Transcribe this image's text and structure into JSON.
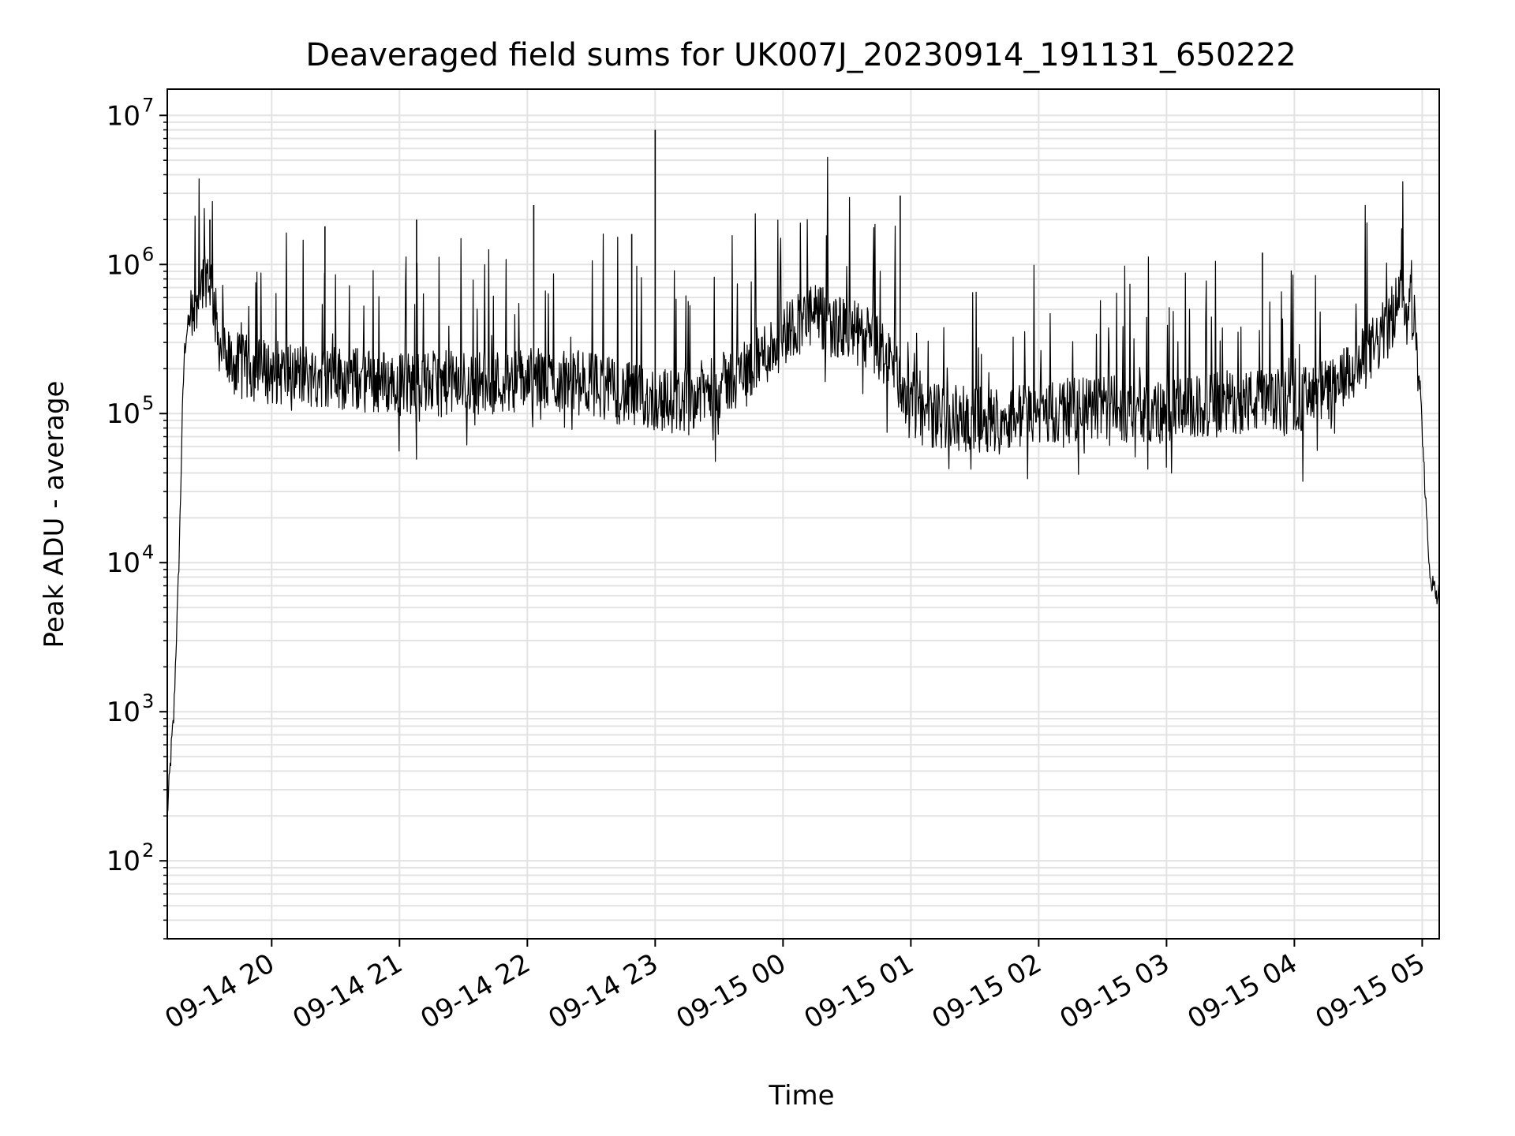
{
  "chart_data": {
    "type": "line",
    "title": "Deaveraged field sums for UK007J_20230914_191131_650222",
    "xlabel": "Time",
    "ylabel": "Peak ADU - average",
    "yscale": "log",
    "ylim": [
      30,
      15000000
    ],
    "xlim": [
      "2023-09-14 19:11",
      "2023-09-15 05:08"
    ],
    "grid": true,
    "x_ticks": [
      {
        "value": "2023-09-14 20:00",
        "label": "09-14 20"
      },
      {
        "value": "2023-09-14 21:00",
        "label": "09-14 21"
      },
      {
        "value": "2023-09-14 22:00",
        "label": "09-14 22"
      },
      {
        "value": "2023-09-14 23:00",
        "label": "09-14 23"
      },
      {
        "value": "2023-09-15 00:00",
        "label": "09-15 00"
      },
      {
        "value": "2023-09-15 01:00",
        "label": "09-15 01"
      },
      {
        "value": "2023-09-15 02:00",
        "label": "09-15 02"
      },
      {
        "value": "2023-09-15 03:00",
        "label": "09-15 03"
      },
      {
        "value": "2023-09-15 04:00",
        "label": "09-15 04"
      },
      {
        "value": "2023-09-15 05:00",
        "label": "09-15 05"
      }
    ],
    "y_ticks": [
      {
        "value": 100,
        "base": "10",
        "exp": "2"
      },
      {
        "value": 1000,
        "base": "10",
        "exp": "3"
      },
      {
        "value": 10000,
        "base": "10",
        "exp": "4"
      },
      {
        "value": 100000,
        "base": "10",
        "exp": "5"
      },
      {
        "value": 1000000,
        "base": "10",
        "exp": "6"
      },
      {
        "value": 10000000,
        "base": "10",
        "exp": "7"
      }
    ],
    "series": [
      {
        "color": "#000000",
        "points": [
          [
            "2023-09-14 19:11",
            200
          ],
          [
            "2023-09-14 19:12",
            350
          ],
          [
            "2023-09-14 19:13",
            600
          ],
          [
            "2023-09-14 19:14",
            900
          ],
          [
            "2023-09-14 19:15",
            2500
          ],
          [
            "2023-09-14 19:16",
            6000
          ],
          [
            "2023-09-14 19:17",
            20000
          ],
          [
            "2023-09-14 19:18",
            90000
          ],
          [
            "2023-09-14 19:19",
            250000
          ],
          [
            "2023-09-14 19:20",
            350000
          ],
          [
            "2023-09-14 19:22",
            450000
          ],
          [
            "2023-09-14 19:24",
            600000
          ],
          [
            "2023-09-14 19:26",
            700000
          ],
          [
            "2023-09-14 19:28",
            800000
          ],
          [
            "2023-09-14 19:30",
            900000
          ],
          [
            "2023-09-14 19:32",
            700000
          ],
          [
            "2023-09-14 19:34",
            400000
          ],
          [
            "2023-09-14 19:36",
            280000
          ],
          [
            "2023-09-14 19:40",
            220000
          ],
          [
            "2023-09-14 19:50",
            200000
          ],
          [
            "2023-09-14 20:00",
            190000
          ],
          [
            "2023-09-14 20:20",
            180000
          ],
          [
            "2023-09-14 20:40",
            170000
          ],
          [
            "2023-09-14 21:00",
            160000
          ],
          [
            "2023-09-14 21:30",
            160000
          ],
          [
            "2023-09-14 22:00",
            170000
          ],
          [
            "2023-09-14 22:30",
            160000
          ],
          [
            "2023-09-14 22:50",
            130000
          ],
          [
            "2023-09-14 23:10",
            120000
          ],
          [
            "2023-09-14 23:30",
            150000
          ],
          [
            "2023-09-14 23:45",
            210000
          ],
          [
            "2023-09-14 23:55",
            280000
          ],
          [
            "2023-09-15 00:05",
            400000
          ],
          [
            "2023-09-15 00:15",
            450000
          ],
          [
            "2023-09-15 00:25",
            380000
          ],
          [
            "2023-09-15 00:40",
            320000
          ],
          [
            "2023-09-15 00:50",
            230000
          ],
          [
            "2023-09-15 00:58",
            130000
          ],
          [
            "2023-09-15 01:05",
            100000
          ],
          [
            "2023-09-15 01:30",
            90000
          ],
          [
            "2023-09-15 02:00",
            100000
          ],
          [
            "2023-09-15 02:30",
            110000
          ],
          [
            "2023-09-15 03:00",
            100000
          ],
          [
            "2023-09-15 03:30",
            120000
          ],
          [
            "2023-09-15 04:00",
            120000
          ],
          [
            "2023-09-15 04:20",
            150000
          ],
          [
            "2023-09-15 04:35",
            250000
          ],
          [
            "2023-09-15 04:45",
            400000
          ],
          [
            "2023-09-15 04:48",
            550000
          ],
          [
            "2023-09-15 04:51",
            650000
          ],
          [
            "2023-09-15 04:54",
            600000
          ],
          [
            "2023-09-15 04:57",
            350000
          ],
          [
            "2023-09-15 04:59",
            150000
          ],
          [
            "2023-09-15 05:01",
            40000
          ],
          [
            "2023-09-15 05:03",
            10000
          ],
          [
            "2023-09-15 05:05",
            7000
          ],
          [
            "2023-09-15 05:08",
            6000
          ]
        ]
      }
    ],
    "spikes": [
      [
        "2023-09-14 19:31",
        2000000
      ],
      [
        "2023-09-14 20:25",
        1800000
      ],
      [
        "2023-09-14 21:08",
        2000000
      ],
      [
        "2023-09-14 22:03",
        2500000
      ],
      [
        "2023-09-14 22:49",
        1600000
      ],
      [
        "2023-09-14 23:00",
        8000000
      ],
      [
        "2023-09-15 00:55",
        2900000
      ],
      [
        "2023-09-15 03:45",
        1200000
      ]
    ]
  }
}
